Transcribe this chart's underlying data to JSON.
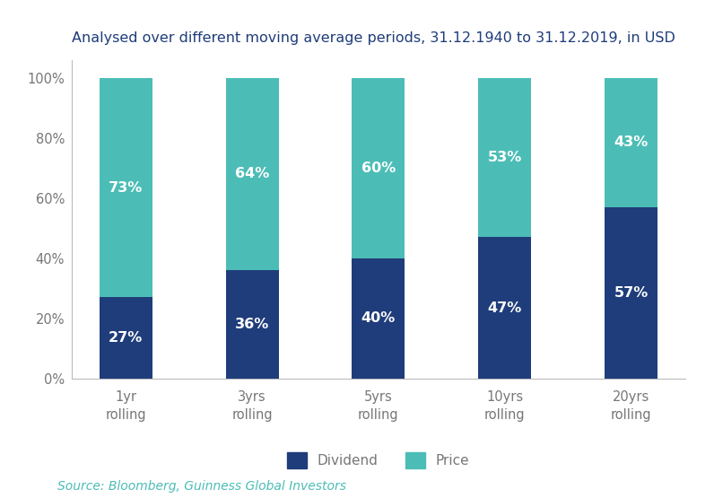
{
  "title": "Analysed over different moving average periods, 31.12.1940 to 31.12.2019, in USD",
  "source": "Source: Bloomberg, Guinness Global Investors",
  "categories": [
    "1yr\nrolling",
    "3yrs\nrolling",
    "5yrs\nrolling",
    "10yrs\nrolling",
    "20yrs\nrolling"
  ],
  "dividend_values": [
    27,
    36,
    40,
    47,
    57
  ],
  "price_values": [
    73,
    64,
    60,
    53,
    43
  ],
  "dividend_color": "#1f3d7a",
  "price_color": "#4cbdb6",
  "bar_width": 0.42,
  "yticks": [
    0,
    20,
    40,
    60,
    80,
    100
  ],
  "ytick_labels": [
    "0%",
    "20%",
    "40%",
    "60%",
    "80%",
    "100%"
  ],
  "ylim": [
    0,
    106
  ],
  "legend_labels": [
    "Dividend",
    "Price"
  ],
  "background_color": "#ffffff",
  "title_fontsize": 11.5,
  "label_fontsize": 11.5,
  "tick_fontsize": 10.5,
  "source_fontsize": 10
}
